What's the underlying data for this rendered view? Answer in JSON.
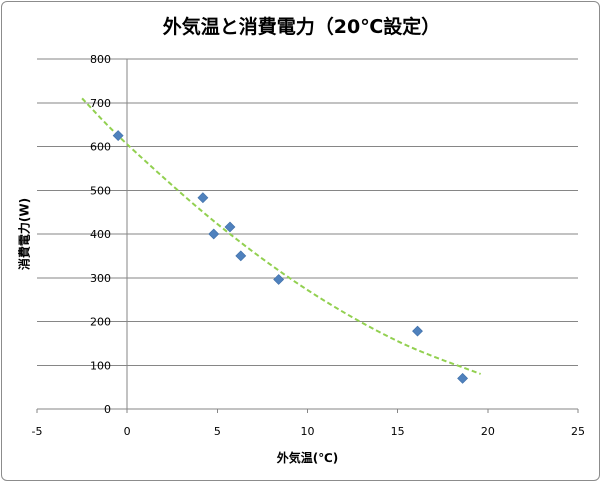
{
  "chart_data": {
    "type": "scatter",
    "title": "外気温と消費電力（20℃設定）",
    "xlabel": "外気温(℃)",
    "ylabel": "消費電力(W)",
    "xlim": [
      -5,
      25
    ],
    "ylim": [
      0,
      800
    ],
    "x_ticks": [
      -5,
      0,
      5,
      10,
      15,
      20,
      25
    ],
    "y_ticks": [
      0,
      100,
      200,
      300,
      400,
      500,
      600,
      700,
      800
    ],
    "grid": "horizontal major gridlines",
    "legend": "none",
    "series": [
      {
        "marker": "diamond",
        "color": "#4f81bd",
        "points": [
          {
            "x": -0.5,
            "y": 625
          },
          {
            "x": 4.2,
            "y": 483
          },
          {
            "x": 4.8,
            "y": 400
          },
          {
            "x": 5.7,
            "y": 416
          },
          {
            "x": 6.3,
            "y": 350
          },
          {
            "x": 8.4,
            "y": 296
          },
          {
            "x": 16.1,
            "y": 178
          },
          {
            "x": 18.6,
            "y": 70
          }
        ]
      }
    ],
    "trendline": {
      "type": "polynomial",
      "style": "dashed",
      "color": "#92d050",
      "x_range": [
        -2.5,
        19.6
      ],
      "points": [
        {
          "x": -2.5,
          "y": 710
        },
        {
          "x": 0,
          "y": 605
        },
        {
          "x": 5,
          "y": 423
        },
        {
          "x": 10,
          "y": 272
        },
        {
          "x": 15,
          "y": 155
        },
        {
          "x": 19.6,
          "y": 80
        }
      ]
    }
  }
}
